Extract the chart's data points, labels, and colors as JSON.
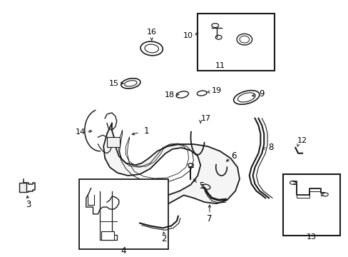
{
  "background_color": "#ffffff",
  "fig_width": 4.89,
  "fig_height": 3.6,
  "dpi": 100,
  "line_color": "#1a1a1a",
  "text_color": "#000000",
  "font_size": 8.5
}
